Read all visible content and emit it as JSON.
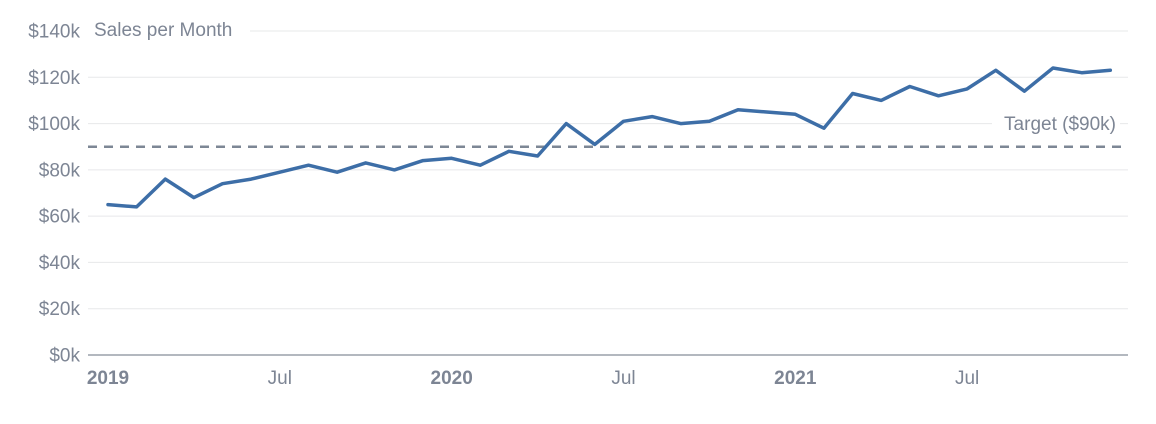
{
  "chart_data": {
    "type": "line",
    "title": "Sales per Month",
    "categories": [
      "Jan 2019",
      "Feb 2019",
      "Mar 2019",
      "Apr 2019",
      "May 2019",
      "Jun 2019",
      "Jul 2019",
      "Aug 2019",
      "Sep 2019",
      "Oct 2019",
      "Nov 2019",
      "Dec 2019",
      "Jan 2020",
      "Feb 2020",
      "Mar 2020",
      "Apr 2020",
      "May 2020",
      "Jun 2020",
      "Jul 2020",
      "Aug 2020",
      "Sep 2020",
      "Oct 2020",
      "Nov 2020",
      "Dec 2020",
      "Jan 2021",
      "Feb 2021",
      "Mar 2021",
      "Apr 2021",
      "May 2021",
      "Jun 2021",
      "Jul 2021",
      "Aug 2021",
      "Sep 2021",
      "Oct 2021",
      "Nov 2021",
      "Dec 2021"
    ],
    "series": [
      {
        "name": "Sales per Month",
        "unit": "$k",
        "values": [
          65,
          64,
          76,
          68,
          74,
          76,
          79,
          82,
          79,
          83,
          80,
          84,
          85,
          82,
          88,
          86,
          100,
          91,
          101,
          103,
          100,
          101,
          106,
          105,
          104,
          98,
          113,
          110,
          116,
          112,
          115,
          123,
          114,
          124,
          122,
          123
        ]
      }
    ],
    "target": {
      "value": 90,
      "label": "Target ($90k)"
    },
    "ylim": [
      0,
      140
    ],
    "y_tick_step": 20,
    "y_tick_labels": [
      "$0k",
      "$20k",
      "$40k",
      "$60k",
      "$80k",
      "$100k",
      "$120k",
      "$140k"
    ],
    "x_ticks": [
      {
        "index": 0,
        "label": "2019",
        "bold": true
      },
      {
        "index": 6,
        "label": "Jul",
        "bold": false
      },
      {
        "index": 12,
        "label": "2020",
        "bold": true
      },
      {
        "index": 18,
        "label": "Jul",
        "bold": false
      },
      {
        "index": 24,
        "label": "2021",
        "bold": true
      },
      {
        "index": 30,
        "label": "Jul",
        "bold": false
      }
    ],
    "grid": true,
    "legend": "none",
    "colors": {
      "series": "#3d6ea7",
      "target_line": "#7d8795",
      "grid": "#e7e8ea",
      "axis_line": "#9aa1aa",
      "label": "#7d8594",
      "background": "#ffffff"
    }
  }
}
